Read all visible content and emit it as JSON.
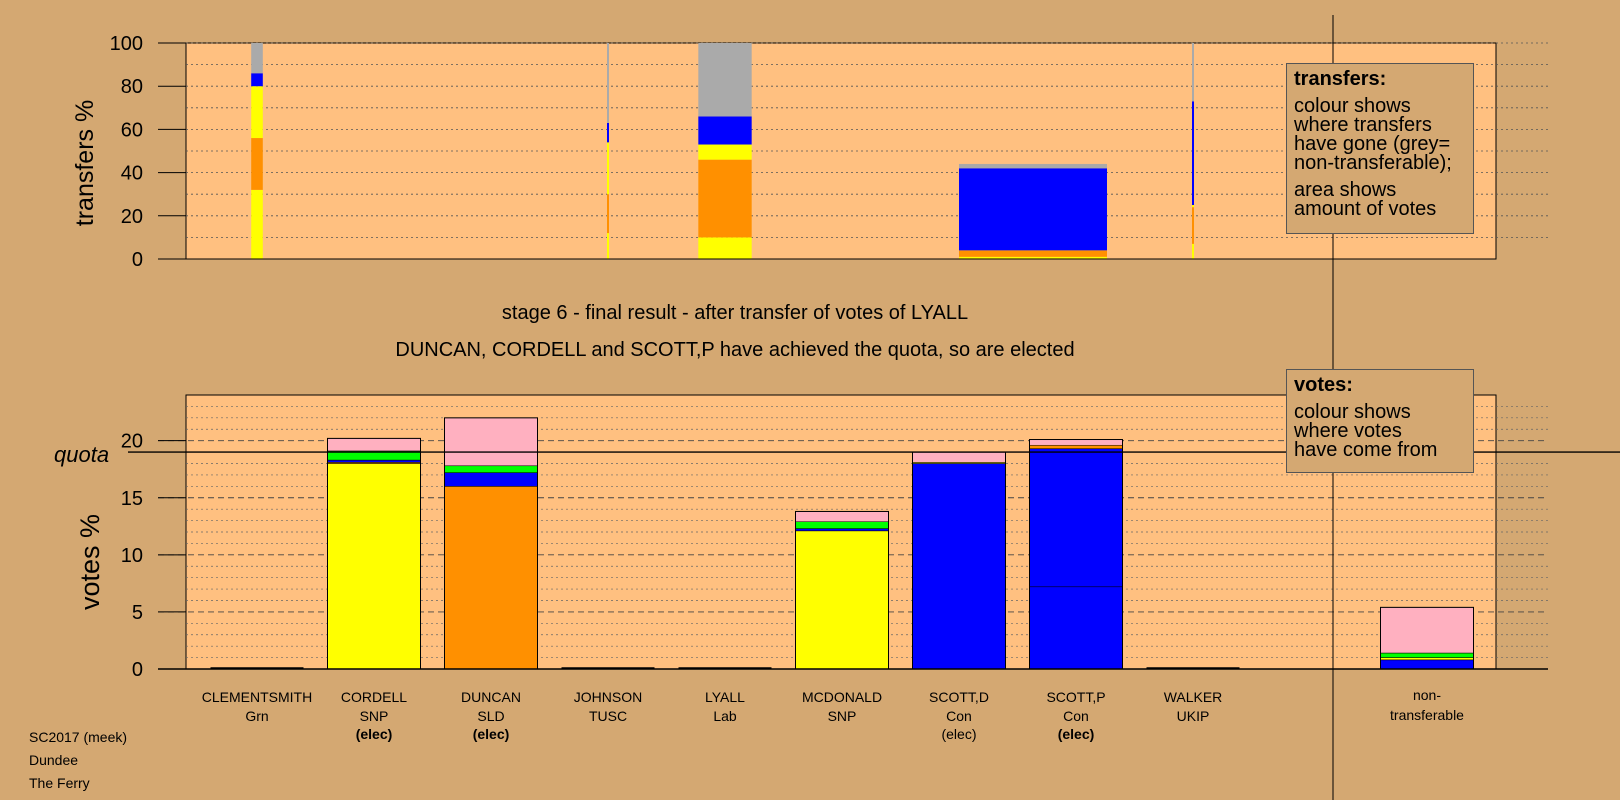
{
  "colors": {
    "background": "#d4a872",
    "plot_area": "#ffc080",
    "SNP": "#ffff00",
    "SLD": "#ff9000",
    "Con": "#0000ff",
    "Grn": "#00ff00",
    "Lab": "#ffb0c0",
    "non_transferable": "#aaaaaa"
  },
  "transfers_legend": {
    "title": "transfers:",
    "lines_1": [
      "colour shows",
      "where transfers",
      "have gone (grey=",
      "non-transferable);"
    ],
    "lines_2": [
      "area shows",
      "amount of votes"
    ]
  },
  "votes_legend": {
    "title": "votes:",
    "lines": [
      "colour shows",
      "where votes",
      "have come from"
    ]
  },
  "stage_text": "stage 6 - final result - after transfer of votes of LYALL",
  "elected_text": "DUNCAN, CORDELL and SCOTT,P have achieved the quota, so are elected",
  "footer": {
    "line1": "SC2017 (meek)",
    "line2": "Dundee",
    "line3": "The Ferry"
  },
  "chart_data": [
    {
      "type": "bar",
      "ylabel": "transfers %",
      "ylim": [
        0,
        100
      ],
      "yticks": [
        0,
        20,
        40,
        60,
        80,
        100
      ],
      "grid": true,
      "legend_position": "top-right",
      "categories": [
        "CLEMENTSMITH",
        "CORDELL",
        "DUNCAN",
        "JOHNSON",
        "LYALL",
        "MCDONALD",
        "SCOTT,D",
        "SCOTT,P",
        "WALKER"
      ],
      "bars": [
        {
          "category": "CLEMENTSMITH",
          "width_share": 0.2,
          "segments": [
            {
              "party": "SNP",
              "from": 0,
              "to": 32
            },
            {
              "party": "SLD",
              "from": 32,
              "to": 56
            },
            {
              "party": "SNP",
              "from": 56,
              "to": 80
            },
            {
              "party": "Con",
              "from": 80,
              "to": 86
            },
            {
              "party": "non_transferable",
              "from": 86,
              "to": 100
            }
          ]
        },
        {
          "category": "JOHNSON",
          "width_share": 0.03,
          "segments": [
            {
              "party": "SNP",
              "from": 0,
              "to": 12
            },
            {
              "party": "SLD",
              "from": 12,
              "to": 30
            },
            {
              "party": "SNP",
              "from": 30,
              "to": 54
            },
            {
              "party": "Con",
              "from": 54,
              "to": 63
            },
            {
              "party": "non_transferable",
              "from": 63,
              "to": 100
            }
          ]
        },
        {
          "category": "LYALL",
          "width_share": 0.92,
          "segments": [
            {
              "party": "SNP",
              "from": 0,
              "to": 10
            },
            {
              "party": "SLD",
              "from": 10,
              "to": 46
            },
            {
              "party": "SNP",
              "from": 46,
              "to": 53
            },
            {
              "party": "Con",
              "from": 53,
              "to": 66
            },
            {
              "party": "non_transferable",
              "from": 66,
              "to": 100
            }
          ]
        },
        {
          "category": "SCOTT,D",
          "width_share": 1.26,
          "span": 1.26,
          "segments": [
            {
              "party": "SNP",
              "from": 0,
              "to": 1
            },
            {
              "party": "SLD",
              "from": 1,
              "to": 4
            },
            {
              "party": "Con",
              "from": 4,
              "to": 42
            },
            {
              "party": "non_transferable",
              "from": 42,
              "to": 44
            }
          ]
        },
        {
          "category": "WALKER",
          "width_share": 0.03,
          "segments": [
            {
              "party": "SNP",
              "from": 0,
              "to": 7
            },
            {
              "party": "SLD",
              "from": 7,
              "to": 24
            },
            {
              "party": "SNP",
              "from": 24,
              "to": 25
            },
            {
              "party": "Con",
              "from": 25,
              "to": 73
            },
            {
              "party": "non_transferable",
              "from": 73,
              "to": 100
            }
          ]
        }
      ]
    },
    {
      "type": "bar",
      "ylabel": "votes %",
      "ylim": [
        0,
        24
      ],
      "yticks": [
        0,
        5,
        10,
        15,
        20
      ],
      "quota": 19,
      "quota_label": "quota",
      "grid": true,
      "legend_position": "top-right",
      "categories": [
        "CLEMENTSMITH",
        "CORDELL",
        "DUNCAN",
        "JOHNSON",
        "LYALL",
        "MCDONALD",
        "SCOTT,D",
        "SCOTT,P",
        "WALKER",
        "non-transferable"
      ],
      "candidates": [
        {
          "name": "CLEMENTSMITH",
          "party": "Grn",
          "elected": ""
        },
        {
          "name": "CORDELL",
          "party": "SNP",
          "elected": "(elec)"
        },
        {
          "name": "DUNCAN",
          "party": "SLD",
          "elected": "(elec)"
        },
        {
          "name": "JOHNSON",
          "party": "TUSC",
          "elected": ""
        },
        {
          "name": "LYALL",
          "party": "Lab",
          "elected": ""
        },
        {
          "name": "MCDONALD",
          "party": "SNP",
          "elected": ""
        },
        {
          "name": "SCOTT,D",
          "party": "Con",
          "elected": "(elec)"
        },
        {
          "name": "SCOTT,P",
          "party": "Con",
          "elected": "(elec)"
        },
        {
          "name": "WALKER",
          "party": "UKIP",
          "elected": ""
        }
      ],
      "nontransferable_label": [
        "non-",
        "transferable"
      ],
      "bars": [
        {
          "category": "CORDELL",
          "segments": [
            {
              "party": "SNP",
              "from": 0,
              "to": 18.0
            },
            {
              "party": "SLD",
              "from": 18.0,
              "to": 18.1
            },
            {
              "party": "Con",
              "from": 18.1,
              "to": 18.3
            },
            {
              "party": "Grn",
              "from": 18.3,
              "to": 19.1
            },
            {
              "party": "Lab",
              "from": 19.1,
              "to": 20.2
            }
          ]
        },
        {
          "category": "DUNCAN",
          "segments": [
            {
              "party": "SLD",
              "from": 0,
              "to": 16.0
            },
            {
              "party": "Con",
              "from": 16.0,
              "to": 17.2
            },
            {
              "party": "Grn",
              "from": 17.2,
              "to": 17.8
            },
            {
              "party": "Lab",
              "from": 17.8,
              "to": 22.0
            }
          ]
        },
        {
          "category": "MCDONALD",
          "segments": [
            {
              "party": "SNP",
              "from": 0,
              "to": 12.1
            },
            {
              "party": "Con",
              "from": 12.1,
              "to": 12.3
            },
            {
              "party": "Grn",
              "from": 12.3,
              "to": 12.9
            },
            {
              "party": "Lab",
              "from": 12.9,
              "to": 13.8
            }
          ]
        },
        {
          "category": "SCOTT,D",
          "segments": [
            {
              "party": "Con",
              "from": 0,
              "to": 18.0
            },
            {
              "party": "SNP",
              "from": 18.0,
              "to": 18.1
            },
            {
              "party": "Lab",
              "from": 18.1,
              "to": 19.0
            }
          ]
        },
        {
          "category": "SCOTT,P",
          "segments": [
            {
              "party": "Con",
              "from": 0,
              "to": 7.2
            },
            {
              "party": "Con",
              "from": 7.2,
              "to": 19.3
            },
            {
              "party": "SLD",
              "from": 19.3,
              "to": 19.6
            },
            {
              "party": "Lab",
              "from": 19.6,
              "to": 20.1
            }
          ]
        },
        {
          "category": "non-transferable",
          "segments": [
            {
              "party": "Con",
              "from": 0,
              "to": 0.8
            },
            {
              "party": "SNP",
              "from": 0.8,
              "to": 1.0
            },
            {
              "party": "Grn",
              "from": 1.0,
              "to": 1.4
            },
            {
              "party": "Lab",
              "from": 1.4,
              "to": 5.4
            }
          ]
        }
      ]
    }
  ]
}
